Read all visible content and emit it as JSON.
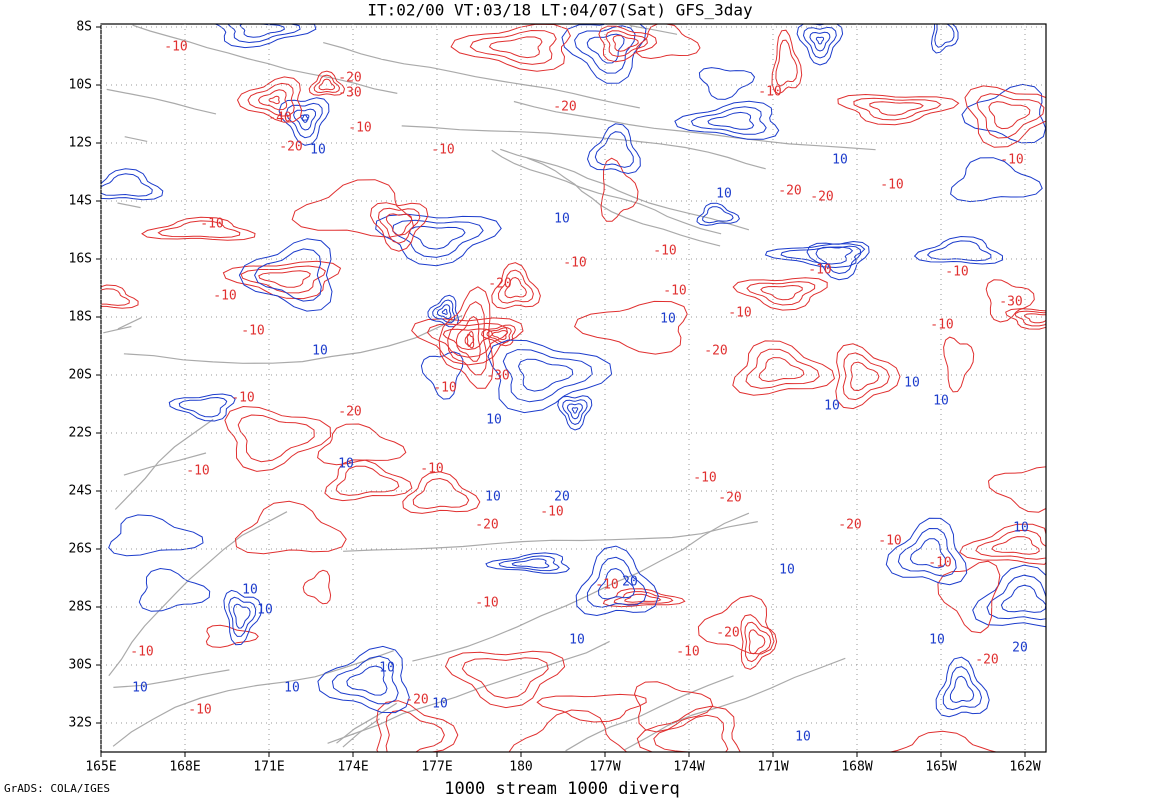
{
  "title": "IT:02/00 VT:03/18 LT:04/07(Sat) GFS_3day",
  "x_axis_labels": [
    "165E",
    "168E",
    "171E",
    "174E",
    "177E",
    "180",
    "177W",
    "174W",
    "171W",
    "168W",
    "165W",
    "162W"
  ],
  "y_axis_labels": [
    "8S",
    "10S",
    "12S",
    "14S",
    "16S",
    "18S",
    "20S",
    "22S",
    "24S",
    "26S",
    "28S",
    "30S",
    "32S"
  ],
  "contour_labels": [
    "-10",
    "-20",
    "-30",
    "-40",
    "-10",
    "-20",
    "10",
    "-10",
    "-20",
    "-10",
    "10",
    "-10",
    "-20",
    "-20",
    "10",
    "-10",
    "10",
    "-10",
    "-10",
    "-10",
    "-10",
    "-10",
    "-20",
    "-10",
    "-10",
    "-30",
    "-10",
    "-10",
    "10",
    "-10",
    "10",
    "-20",
    "-30",
    "-10",
    "10",
    "-10",
    "10",
    "-20",
    "10",
    "10",
    "-10",
    "10",
    "-10",
    "-10",
    "10",
    "20",
    "-20",
    "-10",
    "-20",
    "-20",
    "-10",
    "10",
    "10",
    "-10",
    "-10",
    "20",
    "10",
    "10",
    "-10",
    "-20",
    "10",
    "-10",
    "10",
    "20",
    "-20",
    "-10",
    "10",
    "10",
    "10",
    "-10",
    "-20",
    "10",
    "10"
  ],
  "footer": "GrADS: COLA/IGES",
  "caption": "1000 stream 1000 diverq"
}
